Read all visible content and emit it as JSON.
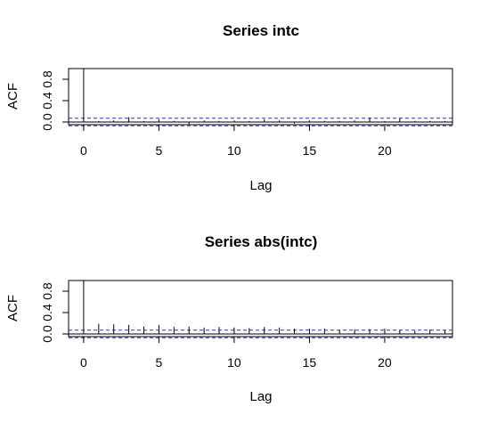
{
  "chart_data": [
    {
      "type": "bar",
      "title": "Series  intc",
      "xlabel": "Lag",
      "ylabel": "ACF",
      "xlim": [
        -1,
        24.5
      ],
      "ylim": [
        -0.05,
        1.0
      ],
      "xticks": [
        0,
        5,
        10,
        15,
        20
      ],
      "yticks": [
        0.0,
        0.4,
        0.8
      ],
      "ytick_labels": [
        "0.0",
        "0.4",
        "0.8"
      ],
      "conf_limit": 0.07,
      "colors": {
        "bars": "#000000",
        "conf": "#2b2bd9",
        "zero": "#000000"
      },
      "lags": [
        0,
        1,
        2,
        3,
        4,
        5,
        6,
        7,
        8,
        9,
        10,
        11,
        12,
        13,
        14,
        15,
        16,
        17,
        18,
        19,
        20,
        21,
        22,
        23,
        24
      ],
      "values": [
        1.0,
        0.02,
        0.03,
        0.09,
        0.02,
        0.05,
        0.02,
        -0.04,
        0.03,
        0.02,
        0.03,
        0.02,
        0.05,
        0.03,
        -0.03,
        0.03,
        0.02,
        0.02,
        0.03,
        0.08,
        0.02,
        0.07,
        0.02,
        0.02,
        0.02
      ]
    },
    {
      "type": "bar",
      "title": "Series  abs(intc)",
      "xlabel": "Lag",
      "ylabel": "ACF",
      "xlim": [
        -1,
        24.5
      ],
      "ylim": [
        -0.05,
        1.0
      ],
      "xticks": [
        0,
        5,
        10,
        15,
        20
      ],
      "yticks": [
        0.0,
        0.4,
        0.8
      ],
      "ytick_labels": [
        "0.0",
        "0.4",
        "0.8"
      ],
      "conf_limit": 0.07,
      "colors": {
        "bars": "#000000",
        "conf": "#2b2bd9",
        "zero": "#000000"
      },
      "lags": [
        0,
        1,
        2,
        3,
        4,
        5,
        6,
        7,
        8,
        9,
        10,
        11,
        12,
        13,
        14,
        15,
        16,
        17,
        18,
        19,
        20,
        21,
        22,
        23,
        24
      ],
      "values": [
        1.0,
        0.19,
        0.18,
        0.17,
        0.14,
        0.17,
        0.13,
        0.14,
        0.12,
        0.13,
        0.12,
        0.11,
        0.13,
        0.12,
        0.1,
        0.1,
        0.1,
        0.07,
        0.08,
        0.09,
        0.1,
        0.07,
        0.06,
        0.08,
        0.07
      ]
    }
  ]
}
